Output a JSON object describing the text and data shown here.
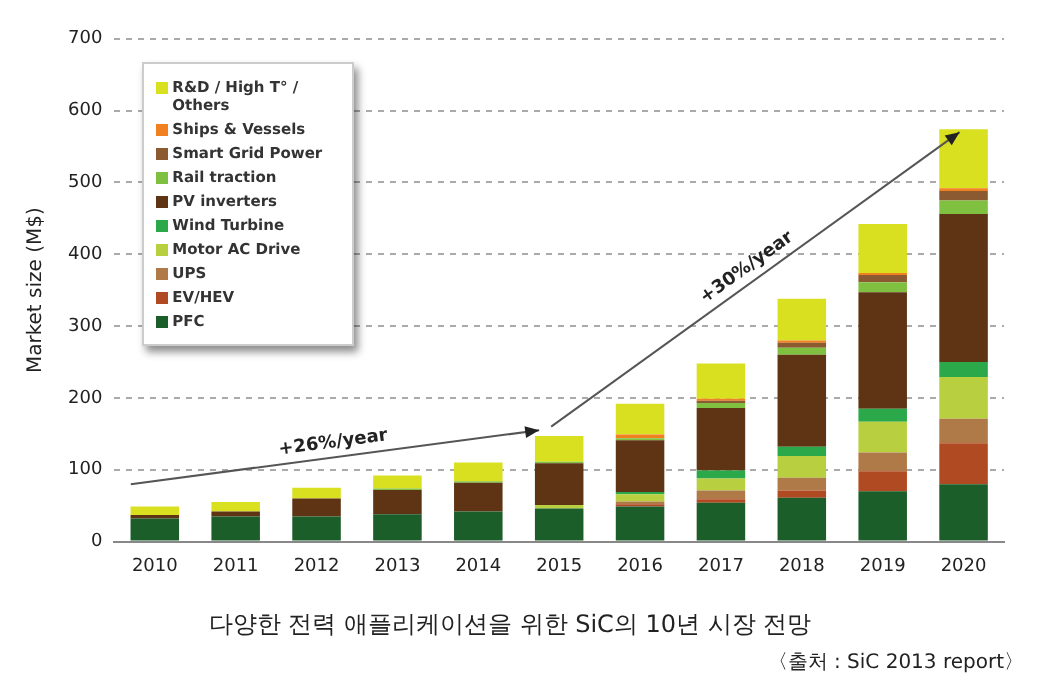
{
  "chart_data": {
    "type": "bar",
    "stacked": true,
    "title": "다양한 전력 애플리케이션을 위한 SiC의 10년 시장 전망",
    "ylabel": "Market size (M$)",
    "categories": [
      "2010",
      "2011",
      "2012",
      "2013",
      "2014",
      "2015",
      "2016",
      "2017",
      "2018",
      "2019",
      "2020"
    ],
    "series": [
      {
        "name": "PFC",
        "color": "#1b5e2a",
        "values": [
          32,
          35,
          35,
          38,
          42,
          46,
          49,
          54,
          61,
          70,
          80
        ]
      },
      {
        "name": "EV/HEV",
        "color": "#b04a22",
        "values": [
          0,
          0,
          0,
          0,
          0,
          0,
          3,
          5,
          10,
          28,
          57
        ]
      },
      {
        "name": "UPS",
        "color": "#b07a48",
        "values": [
          0,
          0,
          0,
          0,
          0,
          0,
          4,
          12,
          18,
          26,
          34
        ]
      },
      {
        "name": "Motor AC Drive",
        "color": "#b8d040",
        "values": [
          0,
          0,
          0,
          0,
          0,
          5,
          10,
          17,
          30,
          43,
          58
        ]
      },
      {
        "name": "Wind Turbine",
        "color": "#2aa84a",
        "values": [
          0,
          0,
          0,
          0,
          0,
          0,
          3,
          11,
          13,
          18,
          21
        ]
      },
      {
        "name": "PV inverters",
        "color": "#5e3415",
        "values": [
          5,
          7,
          25,
          34,
          40,
          58,
          72,
          87,
          128,
          162,
          206
        ]
      },
      {
        "name": "Rail traction",
        "color": "#80c040",
        "values": [
          0,
          0,
          0,
          2,
          2,
          2,
          3,
          7,
          10,
          14,
          19
        ]
      },
      {
        "name": "Smart Grid Power",
        "color": "#8b5a30",
        "values": [
          0,
          0,
          0,
          0,
          0,
          0,
          0,
          3,
          7,
          10,
          13
        ]
      },
      {
        "name": "Ships & Vessels",
        "color": "#f08020",
        "values": [
          0,
          0,
          0,
          0,
          0,
          0,
          5,
          3,
          3,
          3,
          4
        ]
      },
      {
        "name": "R&D / High T° / Others",
        "color": "#d8e020",
        "values": [
          12,
          13,
          15,
          18,
          26,
          36,
          43,
          49,
          58,
          68,
          82
        ]
      }
    ],
    "ylim": [
      0,
      700
    ],
    "yticks": [
      0,
      100,
      200,
      300,
      400,
      500,
      600,
      700
    ],
    "grid": "y",
    "legend": "top left",
    "annotations": [
      "+26%/year",
      "+30%/year",
      "〈출처 : SiC 2013 report〉"
    ]
  }
}
